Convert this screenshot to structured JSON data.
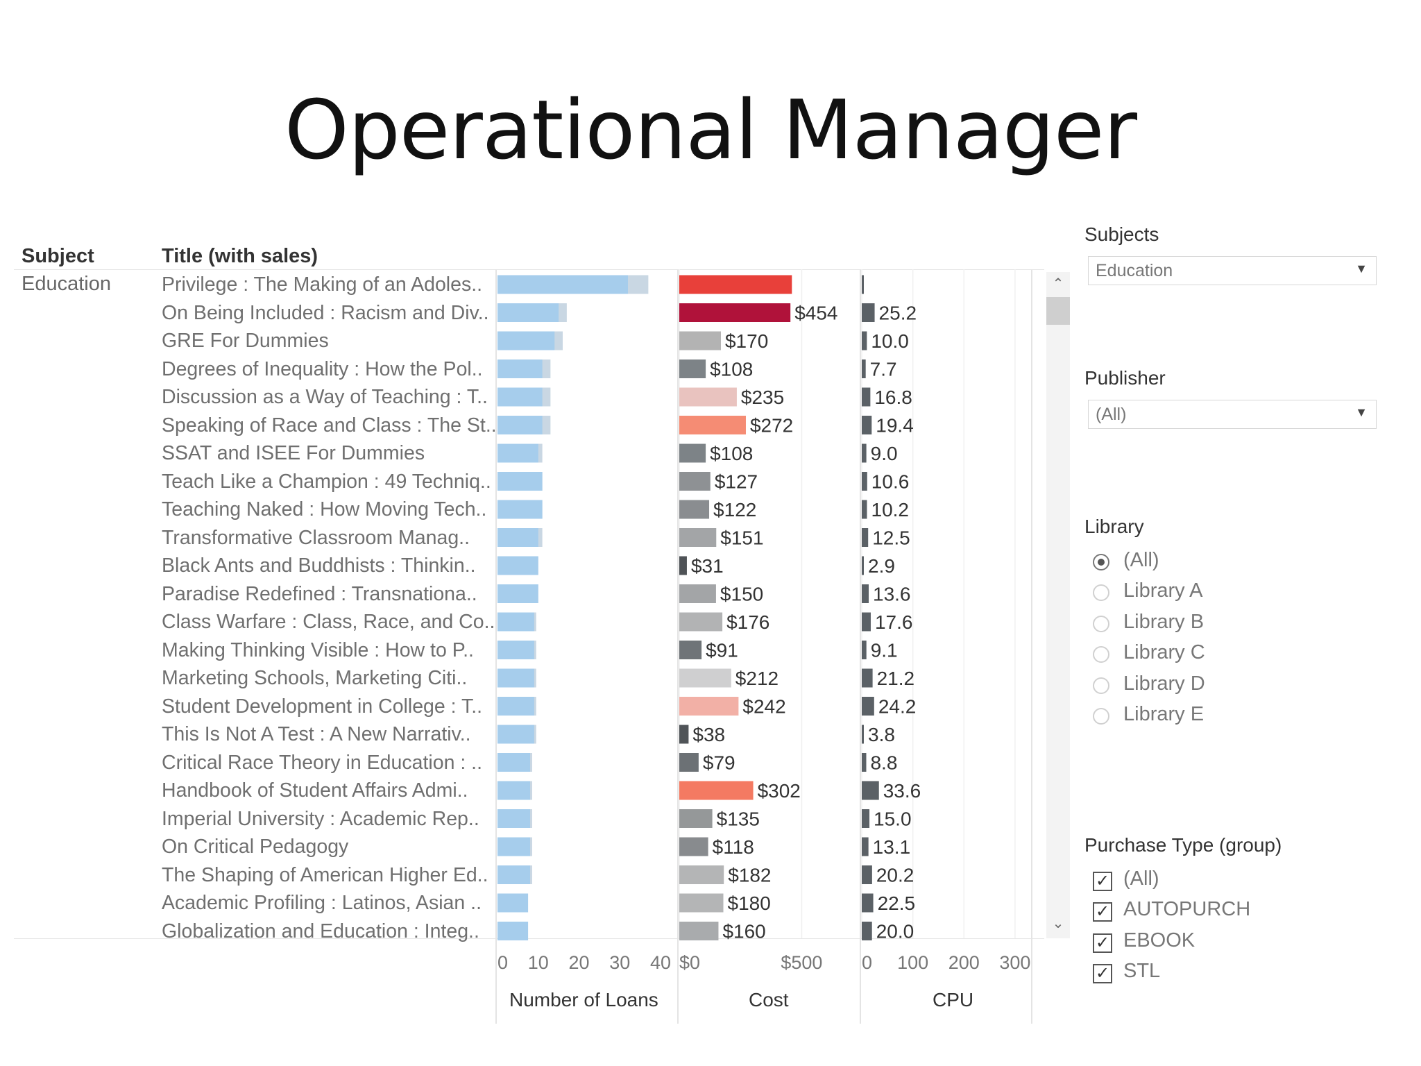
{
  "slide": {
    "title": "Operational Manager"
  },
  "headers": {
    "subject": "Subject",
    "title": "Title (with sales)"
  },
  "subject_value": "Education",
  "filters": {
    "subjects": {
      "label": "Subjects",
      "value": "Education"
    },
    "publisher": {
      "label": "Publisher",
      "value": "(All)"
    },
    "library": {
      "label": "Library",
      "options": [
        "(All)",
        "Library A",
        "Library B",
        "Library C",
        "Library D",
        "Library E"
      ],
      "selected": "(All)"
    },
    "purchase_type": {
      "label": "Purchase Type (group)",
      "options": [
        "(All)",
        "AUTOPURCH",
        "EBOOK",
        "STL"
      ]
    }
  },
  "chart_data": {
    "type": "bar",
    "titles": [
      "Privilege : The Making of an Adoles..",
      "On Being Included : Racism and Div..",
      "GRE For Dummies",
      "Degrees of Inequality : How the Pol..",
      "Discussion as a Way of Teaching : T..",
      "Speaking of Race and Class : The St..",
      "SSAT and ISEE For Dummies",
      "Teach Like a Champion : 49 Techniq..",
      "Teaching Naked : How Moving Tech..",
      "Transformative Classroom Manag..",
      "Black Ants and Buddhists : Thinkin..",
      "Paradise Redefined : Transnationa..",
      "Class Warfare : Class, Race, and Co..",
      "Making Thinking Visible : How to P..",
      "Marketing Schools, Marketing Citi..",
      "Student Development in College : T..",
      "This Is Not A Test : A New Narrativ..",
      "Critical Race Theory in Education : ..",
      "Handbook of Student Affairs Admi..",
      "Imperial University : Academic Rep..",
      "On Critical Pedagogy",
      "The Shaping of American Higher Ed..",
      "Academic Profiling : Latinos, Asian ..",
      "Globalization and Education : Integ.."
    ],
    "loans": [
      {
        "light": 32,
        "total": 37
      },
      {
        "light": 15,
        "total": 17
      },
      {
        "light": 14,
        "total": 16
      },
      {
        "light": 11,
        "total": 13
      },
      {
        "light": 11,
        "total": 13
      },
      {
        "light": 11,
        "total": 13
      },
      {
        "light": 10,
        "total": 11
      },
      {
        "light": 11,
        "total": 11
      },
      {
        "light": 11,
        "total": 11
      },
      {
        "light": 10,
        "total": 11
      },
      {
        "light": 10,
        "total": 10
      },
      {
        "light": 10,
        "total": 10
      },
      {
        "light": 9,
        "total": 9.5
      },
      {
        "light": 9,
        "total": 9.5
      },
      {
        "light": 9,
        "total": 9.5
      },
      {
        "light": 9,
        "total": 9.5
      },
      {
        "light": 9,
        "total": 9.5
      },
      {
        "light": 8,
        "total": 8.5
      },
      {
        "light": 8,
        "total": 8.5
      },
      {
        "light": 8,
        "total": 8.5
      },
      {
        "light": 8,
        "total": 8.5
      },
      {
        "light": 8,
        "total": 8.5
      },
      {
        "light": 7.5,
        "total": 7.5
      },
      {
        "light": 7.5,
        "total": 7.5
      }
    ],
    "cost": [
      {
        "value": 460,
        "label": "",
        "color": "#e8403a"
      },
      {
        "value": 454,
        "label": "$454",
        "color": "#b0123a"
      },
      {
        "value": 170,
        "label": "$170",
        "color": "#b3b3b3"
      },
      {
        "value": 108,
        "label": "$108",
        "color": "#7d8387"
      },
      {
        "value": 235,
        "label": "$235",
        "color": "#e9c3bf"
      },
      {
        "value": 272,
        "label": "$272",
        "color": "#f58c74"
      },
      {
        "value": 108,
        "label": "$108",
        "color": "#7d8387"
      },
      {
        "value": 127,
        "label": "$127",
        "color": "#8e9194"
      },
      {
        "value": 122,
        "label": "$122",
        "color": "#8a8d90"
      },
      {
        "value": 151,
        "label": "$151",
        "color": "#a3a5a7"
      },
      {
        "value": 31,
        "label": "$31",
        "color": "#4f5357"
      },
      {
        "value": 150,
        "label": "$150",
        "color": "#a3a5a7"
      },
      {
        "value": 176,
        "label": "$176",
        "color": "#b2b3b4"
      },
      {
        "value": 91,
        "label": "$91",
        "color": "#6f7478"
      },
      {
        "value": 212,
        "label": "$212",
        "color": "#cfcfd0"
      },
      {
        "value": 242,
        "label": "$242",
        "color": "#f2b0a6"
      },
      {
        "value": 38,
        "label": "$38",
        "color": "#505458"
      },
      {
        "value": 79,
        "label": "$79",
        "color": "#6c7175"
      },
      {
        "value": 302,
        "label": "$302",
        "color": "#f47a62"
      },
      {
        "value": 135,
        "label": "$135",
        "color": "#959899"
      },
      {
        "value": 118,
        "label": "$118",
        "color": "#888b8e"
      },
      {
        "value": 182,
        "label": "$182",
        "color": "#b4b5b6"
      },
      {
        "value": 180,
        "label": "$180",
        "color": "#b4b5b6"
      },
      {
        "value": 160,
        "label": "$160",
        "color": "#a9abad"
      }
    ],
    "cpu": [
      {
        "value": 4,
        "label": ""
      },
      {
        "value": 25.2,
        "label": "25.2"
      },
      {
        "value": 10.0,
        "label": "10.0"
      },
      {
        "value": 7.7,
        "label": "7.7"
      },
      {
        "value": 16.8,
        "label": "16.8"
      },
      {
        "value": 19.4,
        "label": "19.4"
      },
      {
        "value": 9.0,
        "label": "9.0"
      },
      {
        "value": 10.6,
        "label": "10.6"
      },
      {
        "value": 10.2,
        "label": "10.2"
      },
      {
        "value": 12.5,
        "label": "12.5"
      },
      {
        "value": 2.9,
        "label": "2.9"
      },
      {
        "value": 13.6,
        "label": "13.6"
      },
      {
        "value": 17.6,
        "label": "17.6"
      },
      {
        "value": 9.1,
        "label": "9.1"
      },
      {
        "value": 21.2,
        "label": "21.2"
      },
      {
        "value": 24.2,
        "label": "24.2"
      },
      {
        "value": 3.8,
        "label": "3.8"
      },
      {
        "value": 8.8,
        "label": "8.8"
      },
      {
        "value": 33.6,
        "label": "33.6"
      },
      {
        "value": 15.0,
        "label": "15.0"
      },
      {
        "value": 13.1,
        "label": "13.1"
      },
      {
        "value": 20.2,
        "label": "20.2"
      },
      {
        "value": 22.5,
        "label": "22.5"
      },
      {
        "value": 20.0,
        "label": "20.0"
      }
    ],
    "axes": {
      "loans": {
        "title": "Number of Loans",
        "ticks": [
          "0",
          "10",
          "20",
          "30",
          "40"
        ],
        "tick_values": [
          0,
          10,
          20,
          30,
          40
        ],
        "xlim": [
          0,
          40
        ]
      },
      "cost": {
        "title": "Cost",
        "ticks": [
          "$0",
          "$500"
        ],
        "tick_values": [
          0,
          500
        ],
        "xlim": [
          0,
          700
        ]
      },
      "cpu": {
        "title": "CPU",
        "ticks": [
          "0",
          "100",
          "200",
          "300"
        ],
        "tick_values": [
          0,
          100,
          200,
          300
        ],
        "xlim": [
          0,
          330
        ]
      }
    },
    "colors": {
      "loans_light": "#a6cdec",
      "loans_extra": "#c9d7e3",
      "cpu_bar": "#5b6166"
    }
  }
}
